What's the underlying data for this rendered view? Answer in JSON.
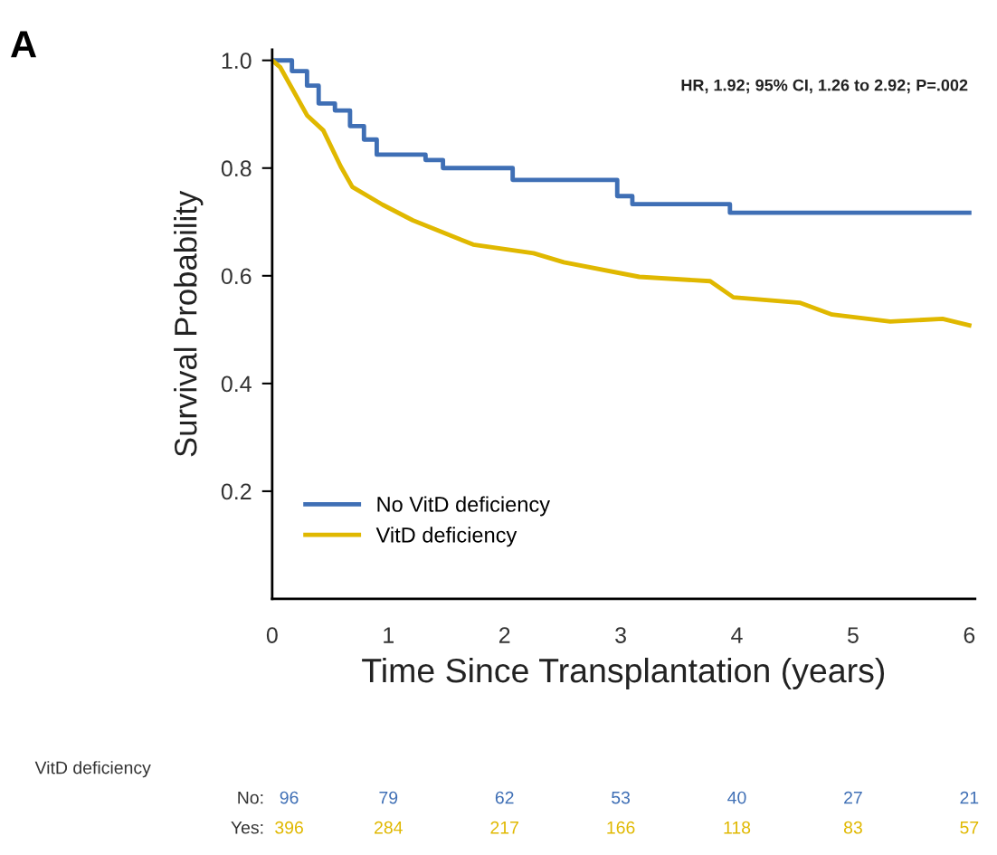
{
  "chart_data": {
    "type": "step",
    "xlabel": "Time Since Transplantation (years)",
    "ylabel": "Survival Probability",
    "xlim": [
      0,
      6.05
    ],
    "ylim": [
      0,
      1.02
    ],
    "xticks": [
      0,
      1,
      2,
      3,
      4,
      5,
      6
    ],
    "yticks": [
      0.2,
      0.4,
      0.6,
      0.8,
      {
        "value": 1.0,
        "label": "1.0"
      }
    ],
    "grid": false,
    "legend": "bottom left",
    "marker": "none",
    "line_style": "solid",
    "series": [
      {
        "name": "No VitD deficiency",
        "color": "#3f6fb5",
        "x": [
          0,
          0.17,
          0.3,
          0.4,
          0.54,
          0.67,
          0.79,
          0.9,
          1.32,
          1.47,
          2.07,
          2.97,
          3.1,
          3.94,
          6.0
        ],
        "values": [
          1.0,
          0.98,
          0.953,
          0.92,
          0.907,
          0.878,
          0.853,
          0.825,
          0.815,
          0.8,
          0.778,
          0.748,
          0.733,
          0.717,
          0.717
        ]
      },
      {
        "name": "VitD deficiency",
        "type": "line",
        "color": "#e0b800",
        "x": [
          0,
          0.07,
          0.3,
          0.44,
          0.59,
          0.69,
          0.95,
          1.21,
          1.73,
          2.25,
          2.51,
          3.16,
          3.77,
          3.97,
          4.54,
          4.82,
          5.32,
          5.77,
          6.0
        ],
        "values": [
          1.0,
          0.987,
          0.898,
          0.87,
          0.803,
          0.765,
          0.732,
          0.703,
          0.658,
          0.642,
          0.625,
          0.598,
          0.59,
          0.56,
          0.55,
          0.528,
          0.515,
          0.52,
          0.508
        ]
      }
    ],
    "annotations": [
      "A",
      "HR, 1.92; 95% CI, 1.26 to 2.92; P=.002",
      "VitD deficiency",
      "No:",
      "96",
      "79",
      "62",
      "53",
      "40",
      "27",
      "21",
      "Yes:",
      "396",
      "284",
      "217",
      "166",
      "118",
      "83",
      "57"
    ]
  }
}
